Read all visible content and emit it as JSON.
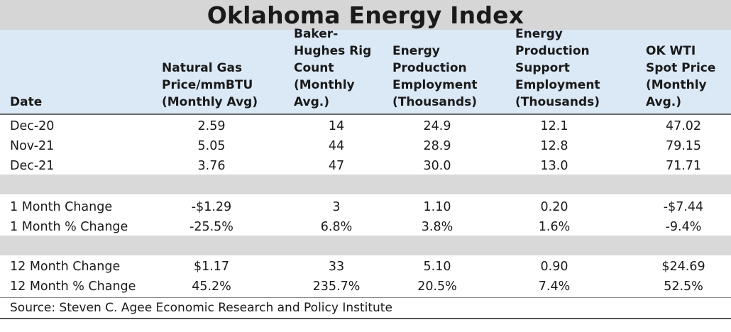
{
  "title": "Oklahoma Energy Index",
  "columns": [
    {
      "label": "Date"
    },
    {
      "label": "Natural Gas\nPrice/mmBTU\n(Monthly Avg)"
    },
    {
      "label": "Baker-\nHughes Rig\nCount\n(Monthly\nAvg.)"
    },
    {
      "label": "Energy\nProduction\nEmployment\n(Thousands)"
    },
    {
      "label": "Energy\nProduction\nSupport\nEmployment\n(Thousands)"
    },
    {
      "label": "OK WTI\nSpot Price\n(Monthly\nAvg.)"
    }
  ],
  "rows": [
    {
      "label": "Dec-20",
      "values": [
        "2.59",
        "14",
        "24.9",
        "12.1",
        "47.02"
      ]
    },
    {
      "label": "Nov-21",
      "values": [
        "5.05",
        "44",
        "28.9",
        "12.8",
        "79.15"
      ]
    },
    {
      "label": "Dec-21",
      "values": [
        "3.76",
        "47",
        "30.0",
        "13.0",
        "71.71"
      ]
    },
    {
      "label": "1 Month Change",
      "values": [
        "-$1.29",
        "3",
        "1.10",
        "0.20",
        "-$7.44"
      ]
    },
    {
      "label": "1 Month % Change",
      "values": [
        "-25.5%",
        "6.8%",
        "3.8%",
        "1.6%",
        "-9.4%"
      ]
    },
    {
      "label": "12 Month Change",
      "values": [
        "$1.17",
        "33",
        "5.10",
        "0.90",
        "$24.69"
      ]
    },
    {
      "label": "12 Month % Change",
      "values": [
        "45.2%",
        "235.7%",
        "20.5%",
        "7.4%",
        "52.5%"
      ]
    }
  ],
  "source": "Source: Steven C. Agee Economic Research and Policy Institute"
}
